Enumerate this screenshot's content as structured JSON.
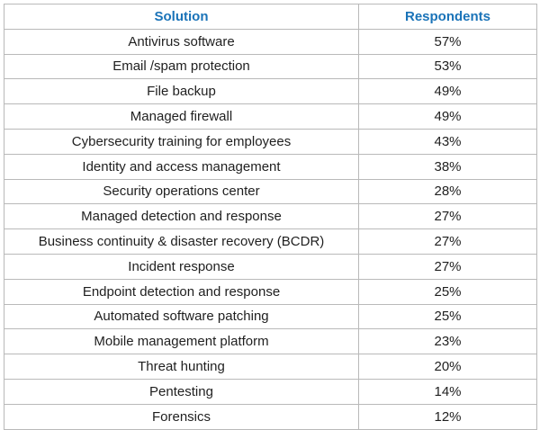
{
  "table": {
    "headers": [
      "Solution",
      "Respondents"
    ],
    "rows": [
      {
        "solution": "Antivirus software",
        "respondents": "57%"
      },
      {
        "solution": "Email /spam protection",
        "respondents": "53%"
      },
      {
        "solution": "File backup",
        "respondents": "49%"
      },
      {
        "solution": "Managed firewall",
        "respondents": "49%"
      },
      {
        "solution": "Cybersecurity training for employees",
        "respondents": "43%"
      },
      {
        "solution": "Identity and access management",
        "respondents": "38%"
      },
      {
        "solution": "Security operations center",
        "respondents": "28%"
      },
      {
        "solution": "Managed detection and response",
        "respondents": "27%"
      },
      {
        "solution": "Business continuity & disaster recovery (BCDR)",
        "respondents": "27%"
      },
      {
        "solution": "Incident response",
        "respondents": "27%"
      },
      {
        "solution": "Endpoint detection and response",
        "respondents": "25%"
      },
      {
        "solution": "Automated software patching",
        "respondents": "25%"
      },
      {
        "solution": "Mobile management platform",
        "respondents": "23%"
      },
      {
        "solution": "Threat hunting",
        "respondents": "20%"
      },
      {
        "solution": "Pentesting",
        "respondents": "14%"
      },
      {
        "solution": "Forensics",
        "respondents": "12%"
      }
    ]
  },
  "colors": {
    "header_text": "#1a73b8",
    "border": "#b9b9b9",
    "text": "#1f1f1f"
  }
}
